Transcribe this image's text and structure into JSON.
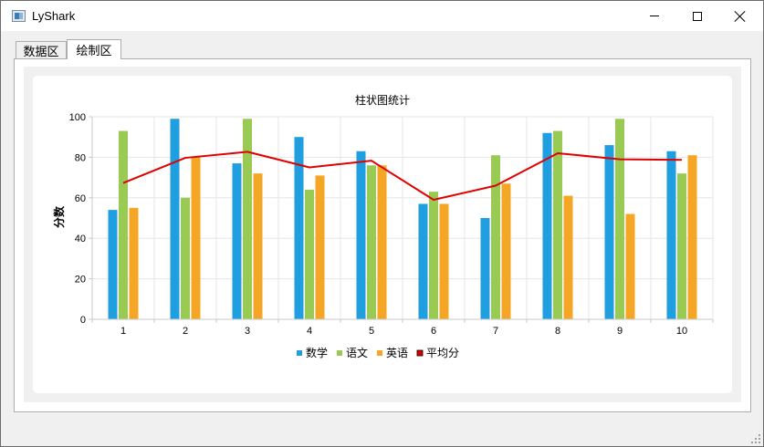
{
  "window": {
    "title": "LyShark",
    "icon": "app-window-icon",
    "controls": {
      "minimize": "minimize-icon",
      "maximize": "maximize-icon",
      "close": "close-icon"
    }
  },
  "tabs": [
    {
      "label": "数据区",
      "active": false
    },
    {
      "label": "绘制区",
      "active": true
    }
  ],
  "colors": {
    "math": "#1f9ee0",
    "chinese": "#99ca53",
    "english": "#f6a625",
    "average": "#e00000",
    "grid": "#e6e6e6",
    "axis": "#c8c8c8"
  },
  "chart_data": {
    "type": "bar",
    "title": "柱状图统计",
    "xlabel": "",
    "ylabel": "分数",
    "ylim": [
      0,
      100
    ],
    "yticks": [
      0,
      20,
      40,
      60,
      80,
      100
    ],
    "categories": [
      "1",
      "2",
      "3",
      "4",
      "5",
      "6",
      "7",
      "8",
      "9",
      "10"
    ],
    "series": [
      {
        "name": "数学",
        "type": "bar",
        "color": "#1f9ee0",
        "values": [
          54,
          99,
          77,
          90,
          83,
          57,
          50,
          92,
          86,
          83
        ]
      },
      {
        "name": "语文",
        "type": "bar",
        "color": "#99ca53",
        "values": [
          93,
          60,
          99,
          64,
          76,
          63,
          81,
          93,
          99,
          72
        ]
      },
      {
        "name": "英语",
        "type": "bar",
        "color": "#f6a625",
        "values": [
          55,
          80,
          72,
          71,
          76,
          57,
          67,
          61,
          52,
          81
        ]
      },
      {
        "name": "平均分",
        "type": "line",
        "color": "#e00000",
        "values": [
          67.3,
          79.7,
          82.7,
          75.0,
          78.3,
          59.0,
          66.0,
          82.0,
          79.0,
          78.7
        ]
      }
    ],
    "grid": true,
    "legend_position": "bottom"
  }
}
